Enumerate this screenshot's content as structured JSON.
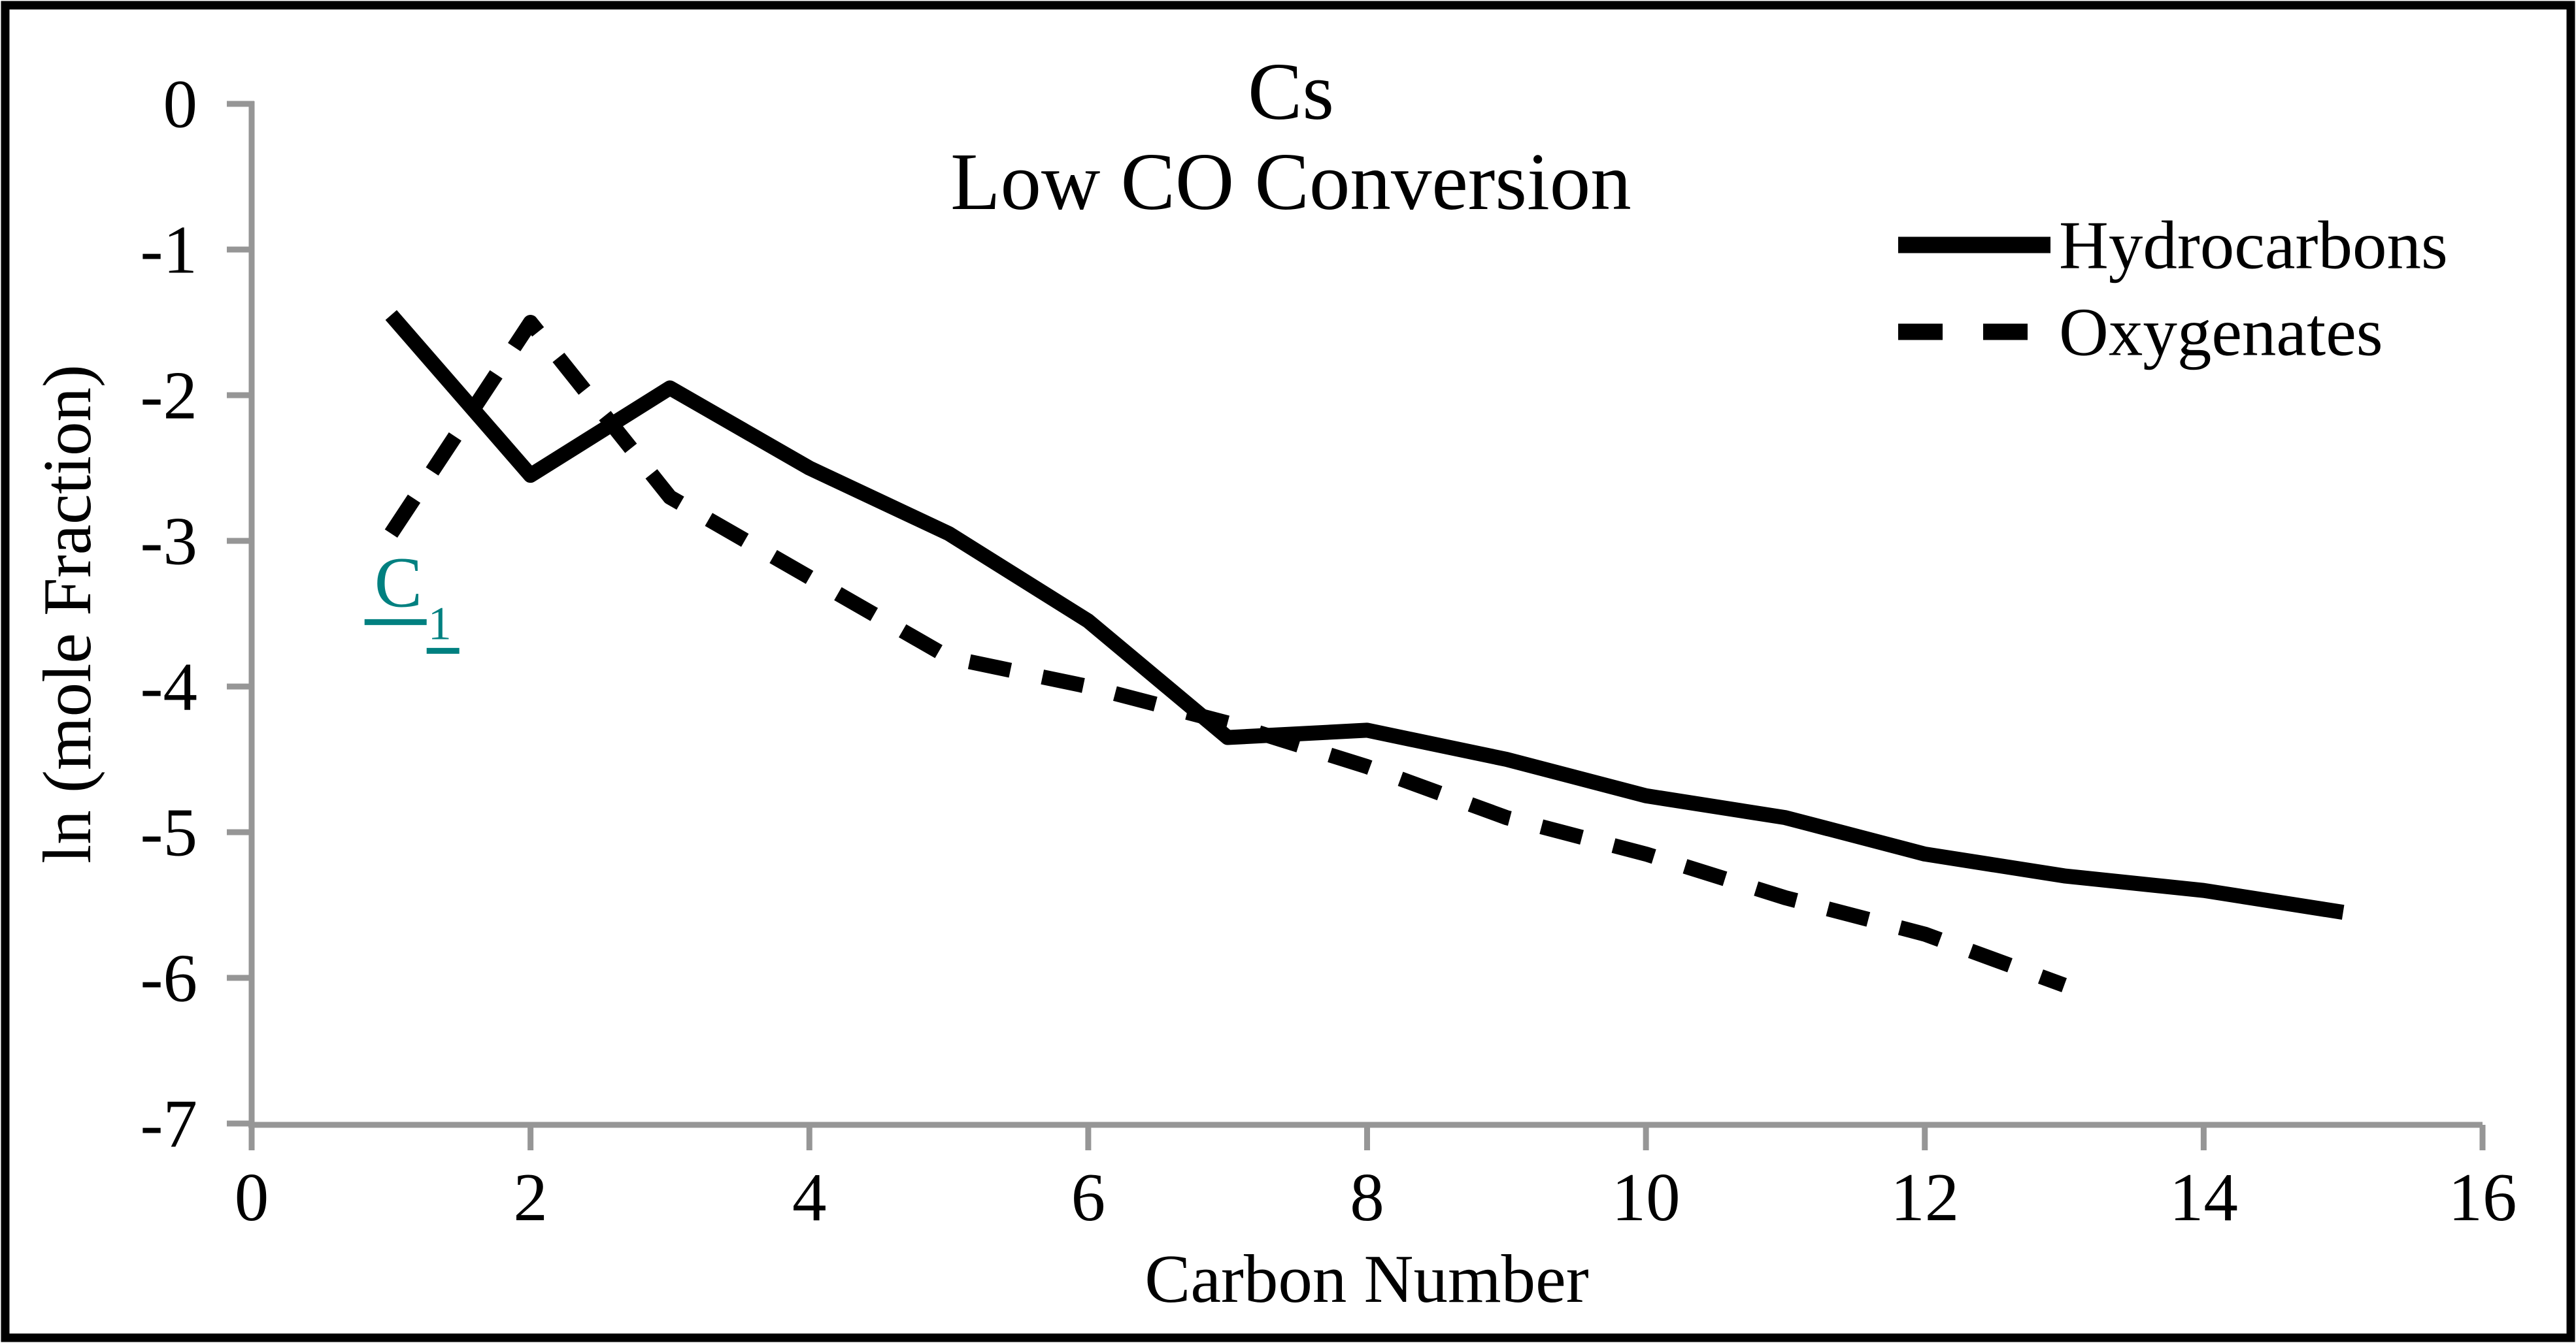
{
  "title": {
    "line1": "Cs",
    "line2": "Low CO Conversion"
  },
  "colors": {
    "series": "#000000",
    "axis": "#969696",
    "annotation": "#008080",
    "text": "#000000",
    "background": "#FFFFFF"
  },
  "chart_data": {
    "type": "line",
    "title": "Cs Low CO Conversion",
    "xlabel": "Carbon Number",
    "ylabel": "ln (mole Fraction)",
    "xlim": [
      0,
      16
    ],
    "ylim": [
      -7,
      0
    ],
    "x_ticks": [
      0,
      2,
      4,
      6,
      8,
      10,
      12,
      14,
      16
    ],
    "y_ticks": [
      0,
      -1,
      -2,
      -3,
      -4,
      -5,
      -6,
      -7
    ],
    "grid": false,
    "legend_position": "upper right",
    "series": [
      {
        "name": "Hydrocarbons",
        "line_style": "solid",
        "color": "#000000",
        "x": [
          1,
          2,
          3,
          4,
          5,
          6,
          7,
          8,
          9,
          10,
          11,
          12,
          13,
          14,
          15
        ],
        "y": [
          -1.45,
          -2.55,
          -1.95,
          -2.5,
          -2.95,
          -3.55,
          -4.35,
          -4.3,
          -4.5,
          -4.75,
          -4.9,
          -5.15,
          -5.3,
          -5.4,
          -5.55
        ]
      },
      {
        "name": "Oxygenates",
        "line_style": "dashed",
        "color": "#000000",
        "x": [
          1,
          2,
          3,
          4,
          5,
          6,
          7,
          8,
          9,
          10,
          11,
          12,
          13
        ],
        "y": [
          -2.95,
          -1.5,
          -2.7,
          -3.25,
          -3.8,
          -4.0,
          -4.25,
          -4.55,
          -4.9,
          -5.15,
          -5.45,
          -5.7,
          -6.05
        ]
      }
    ],
    "annotation": {
      "text": "C",
      "subscript": "1",
      "x": 0.88,
      "y": -3.45,
      "color": "#008080"
    }
  }
}
